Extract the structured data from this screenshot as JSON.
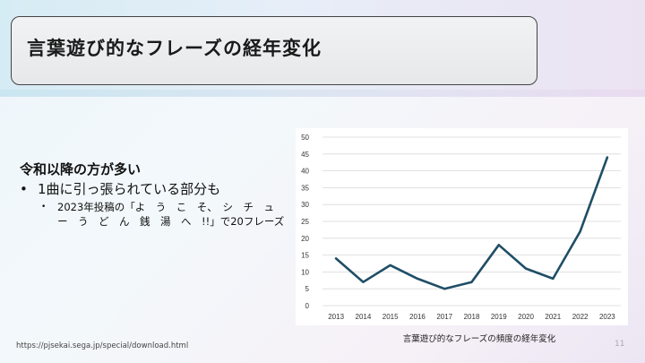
{
  "slide": {
    "title": "言葉遊び的なフレーズの経年変化",
    "heading": "令和以降の方が多い",
    "bullet1": "1曲に引っ張られている部分も",
    "bullet1_sub": "2023年投稿の「よ　う　こ　そ、　シ　チ　ュ　ー　う　ど　ん　銭　湯　へ　!!」で20フレーズ",
    "caption": "言葉遊び的なフレーズの頻度の経年変化",
    "footer_url": "https://pjsekai.sega.jp/special/download.html",
    "page_number": "11"
  },
  "chart_data": {
    "type": "line",
    "categories": [
      "2013",
      "2014",
      "2015",
      "2016",
      "2017",
      "2018",
      "2019",
      "2020",
      "2021",
      "2022",
      "2023"
    ],
    "values": [
      14,
      7,
      12,
      8,
      5,
      7,
      18,
      11,
      8,
      22,
      44
    ],
    "yticks": [
      "0",
      "5",
      "10",
      "15",
      "20",
      "25",
      "30",
      "35",
      "40",
      "45",
      "50"
    ],
    "ylim": [
      0,
      50
    ],
    "grid": true,
    "line_color": "#1f4e66",
    "title": "言葉遊び的なフレーズの頻度の経年変化"
  }
}
